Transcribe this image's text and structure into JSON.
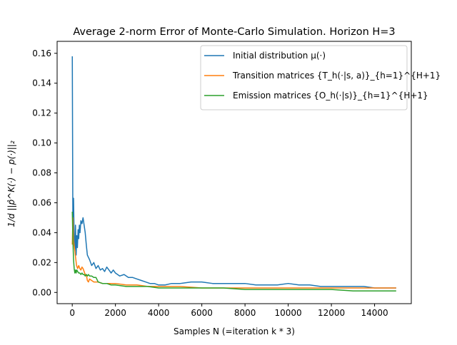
{
  "chart_data": {
    "type": "line",
    "title": "Average 2-norm Error of Monte-Carlo Simulation. Horizon H=3",
    "xlabel": "Samples N (=iteration k * 3)",
    "ylabel": "1/d ||p̂^K(·) − p(·)||₂",
    "xlim": [
      -700,
      15700
    ],
    "ylim": [
      -0.0075,
      0.168
    ],
    "xticks": [
      0,
      2000,
      4000,
      6000,
      8000,
      10000,
      12000,
      14000
    ],
    "xtick_labels": [
      "0",
      "2000",
      "4000",
      "6000",
      "8000",
      "10000",
      "12000",
      "14000"
    ],
    "yticks": [
      0.0,
      0.02,
      0.04,
      0.06,
      0.08,
      0.1,
      0.12,
      0.14,
      0.16
    ],
    "ytick_labels": [
      "0.00",
      "0.02",
      "0.04",
      "0.06",
      "0.08",
      "0.10",
      "0.12",
      "0.14",
      "0.16"
    ],
    "grid": false,
    "legend_position": "top-right",
    "series": [
      {
        "name": "Initial distribution μ(·)",
        "color": "#1f77b4",
        "x": [
          3,
          30,
          60,
          90,
          120,
          150,
          180,
          210,
          240,
          270,
          300,
          330,
          360,
          400,
          450,
          500,
          550,
          600,
          650,
          700,
          800,
          900,
          1000,
          1100,
          1200,
          1300,
          1400,
          1500,
          1600,
          1700,
          1800,
          1900,
          2000,
          2200,
          2400,
          2600,
          2800,
          3000,
          3200,
          3400,
          3600,
          3800,
          4000,
          4300,
          4600,
          5000,
          5500,
          6000,
          6500,
          7000,
          7500,
          8000,
          8500,
          9000,
          9500,
          10000,
          10500,
          11000,
          11500,
          12000,
          12500,
          13000,
          13500,
          14000,
          14500,
          15000
        ],
        "y": [
          0.158,
          0.04,
          0.063,
          0.035,
          0.028,
          0.045,
          0.025,
          0.038,
          0.03,
          0.042,
          0.036,
          0.045,
          0.04,
          0.048,
          0.046,
          0.05,
          0.045,
          0.04,
          0.032,
          0.025,
          0.022,
          0.018,
          0.02,
          0.016,
          0.018,
          0.015,
          0.016,
          0.014,
          0.017,
          0.015,
          0.013,
          0.015,
          0.013,
          0.011,
          0.012,
          0.01,
          0.01,
          0.009,
          0.008,
          0.007,
          0.006,
          0.006,
          0.005,
          0.005,
          0.006,
          0.006,
          0.007,
          0.007,
          0.006,
          0.006,
          0.006,
          0.006,
          0.005,
          0.005,
          0.005,
          0.006,
          0.005,
          0.005,
          0.004,
          0.004,
          0.004,
          0.004,
          0.004,
          0.003,
          0.003,
          0.003
        ]
      },
      {
        "name": "Transition matrices {T_h(·|s, a)}_{h=1}^{H+1}",
        "color": "#ff7f0e",
        "x": [
          3,
          30,
          60,
          90,
          120,
          150,
          200,
          250,
          300,
          350,
          400,
          450,
          500,
          550,
          600,
          650,
          700,
          750,
          800,
          900,
          1000,
          1200,
          1400,
          1600,
          1800,
          2000,
          2500,
          3000,
          3500,
          4000,
          5000,
          6000,
          7000,
          8000,
          9000,
          10000,
          11000,
          12000,
          13000,
          14000,
          15000
        ],
        "y": [
          0.032,
          0.05,
          0.035,
          0.031,
          0.028,
          0.024,
          0.018,
          0.016,
          0.018,
          0.016,
          0.015,
          0.017,
          0.016,
          0.014,
          0.012,
          0.012,
          0.008,
          0.007,
          0.009,
          0.008,
          0.007,
          0.007,
          0.006,
          0.006,
          0.006,
          0.006,
          0.005,
          0.005,
          0.004,
          0.004,
          0.004,
          0.003,
          0.003,
          0.003,
          0.003,
          0.003,
          0.003,
          0.003,
          0.003,
          0.003,
          0.003
        ]
      },
      {
        "name": "Emission matrices {O_h(·|s)}_{h=1}^{H+1}",
        "color": "#2ca02c",
        "x": [
          3,
          30,
          60,
          90,
          120,
          150,
          180,
          210,
          250,
          300,
          350,
          400,
          450,
          500,
          550,
          600,
          650,
          700,
          750,
          800,
          900,
          1000,
          1100,
          1200,
          1400,
          1600,
          1800,
          2000,
          2500,
          3000,
          3500,
          4000,
          5000,
          6000,
          7000,
          8000,
          9000,
          10000,
          11000,
          12000,
          13000,
          14000,
          15000
        ],
        "y": [
          0.054,
          0.035,
          0.022,
          0.016,
          0.013,
          0.015,
          0.013,
          0.015,
          0.014,
          0.013,
          0.013,
          0.012,
          0.013,
          0.012,
          0.012,
          0.011,
          0.012,
          0.011,
          0.012,
          0.011,
          0.011,
          0.01,
          0.01,
          0.007,
          0.006,
          0.006,
          0.005,
          0.005,
          0.004,
          0.004,
          0.004,
          0.003,
          0.003,
          0.003,
          0.003,
          0.002,
          0.002,
          0.002,
          0.002,
          0.002,
          0.001,
          0.001,
          0.001
        ]
      }
    ]
  }
}
